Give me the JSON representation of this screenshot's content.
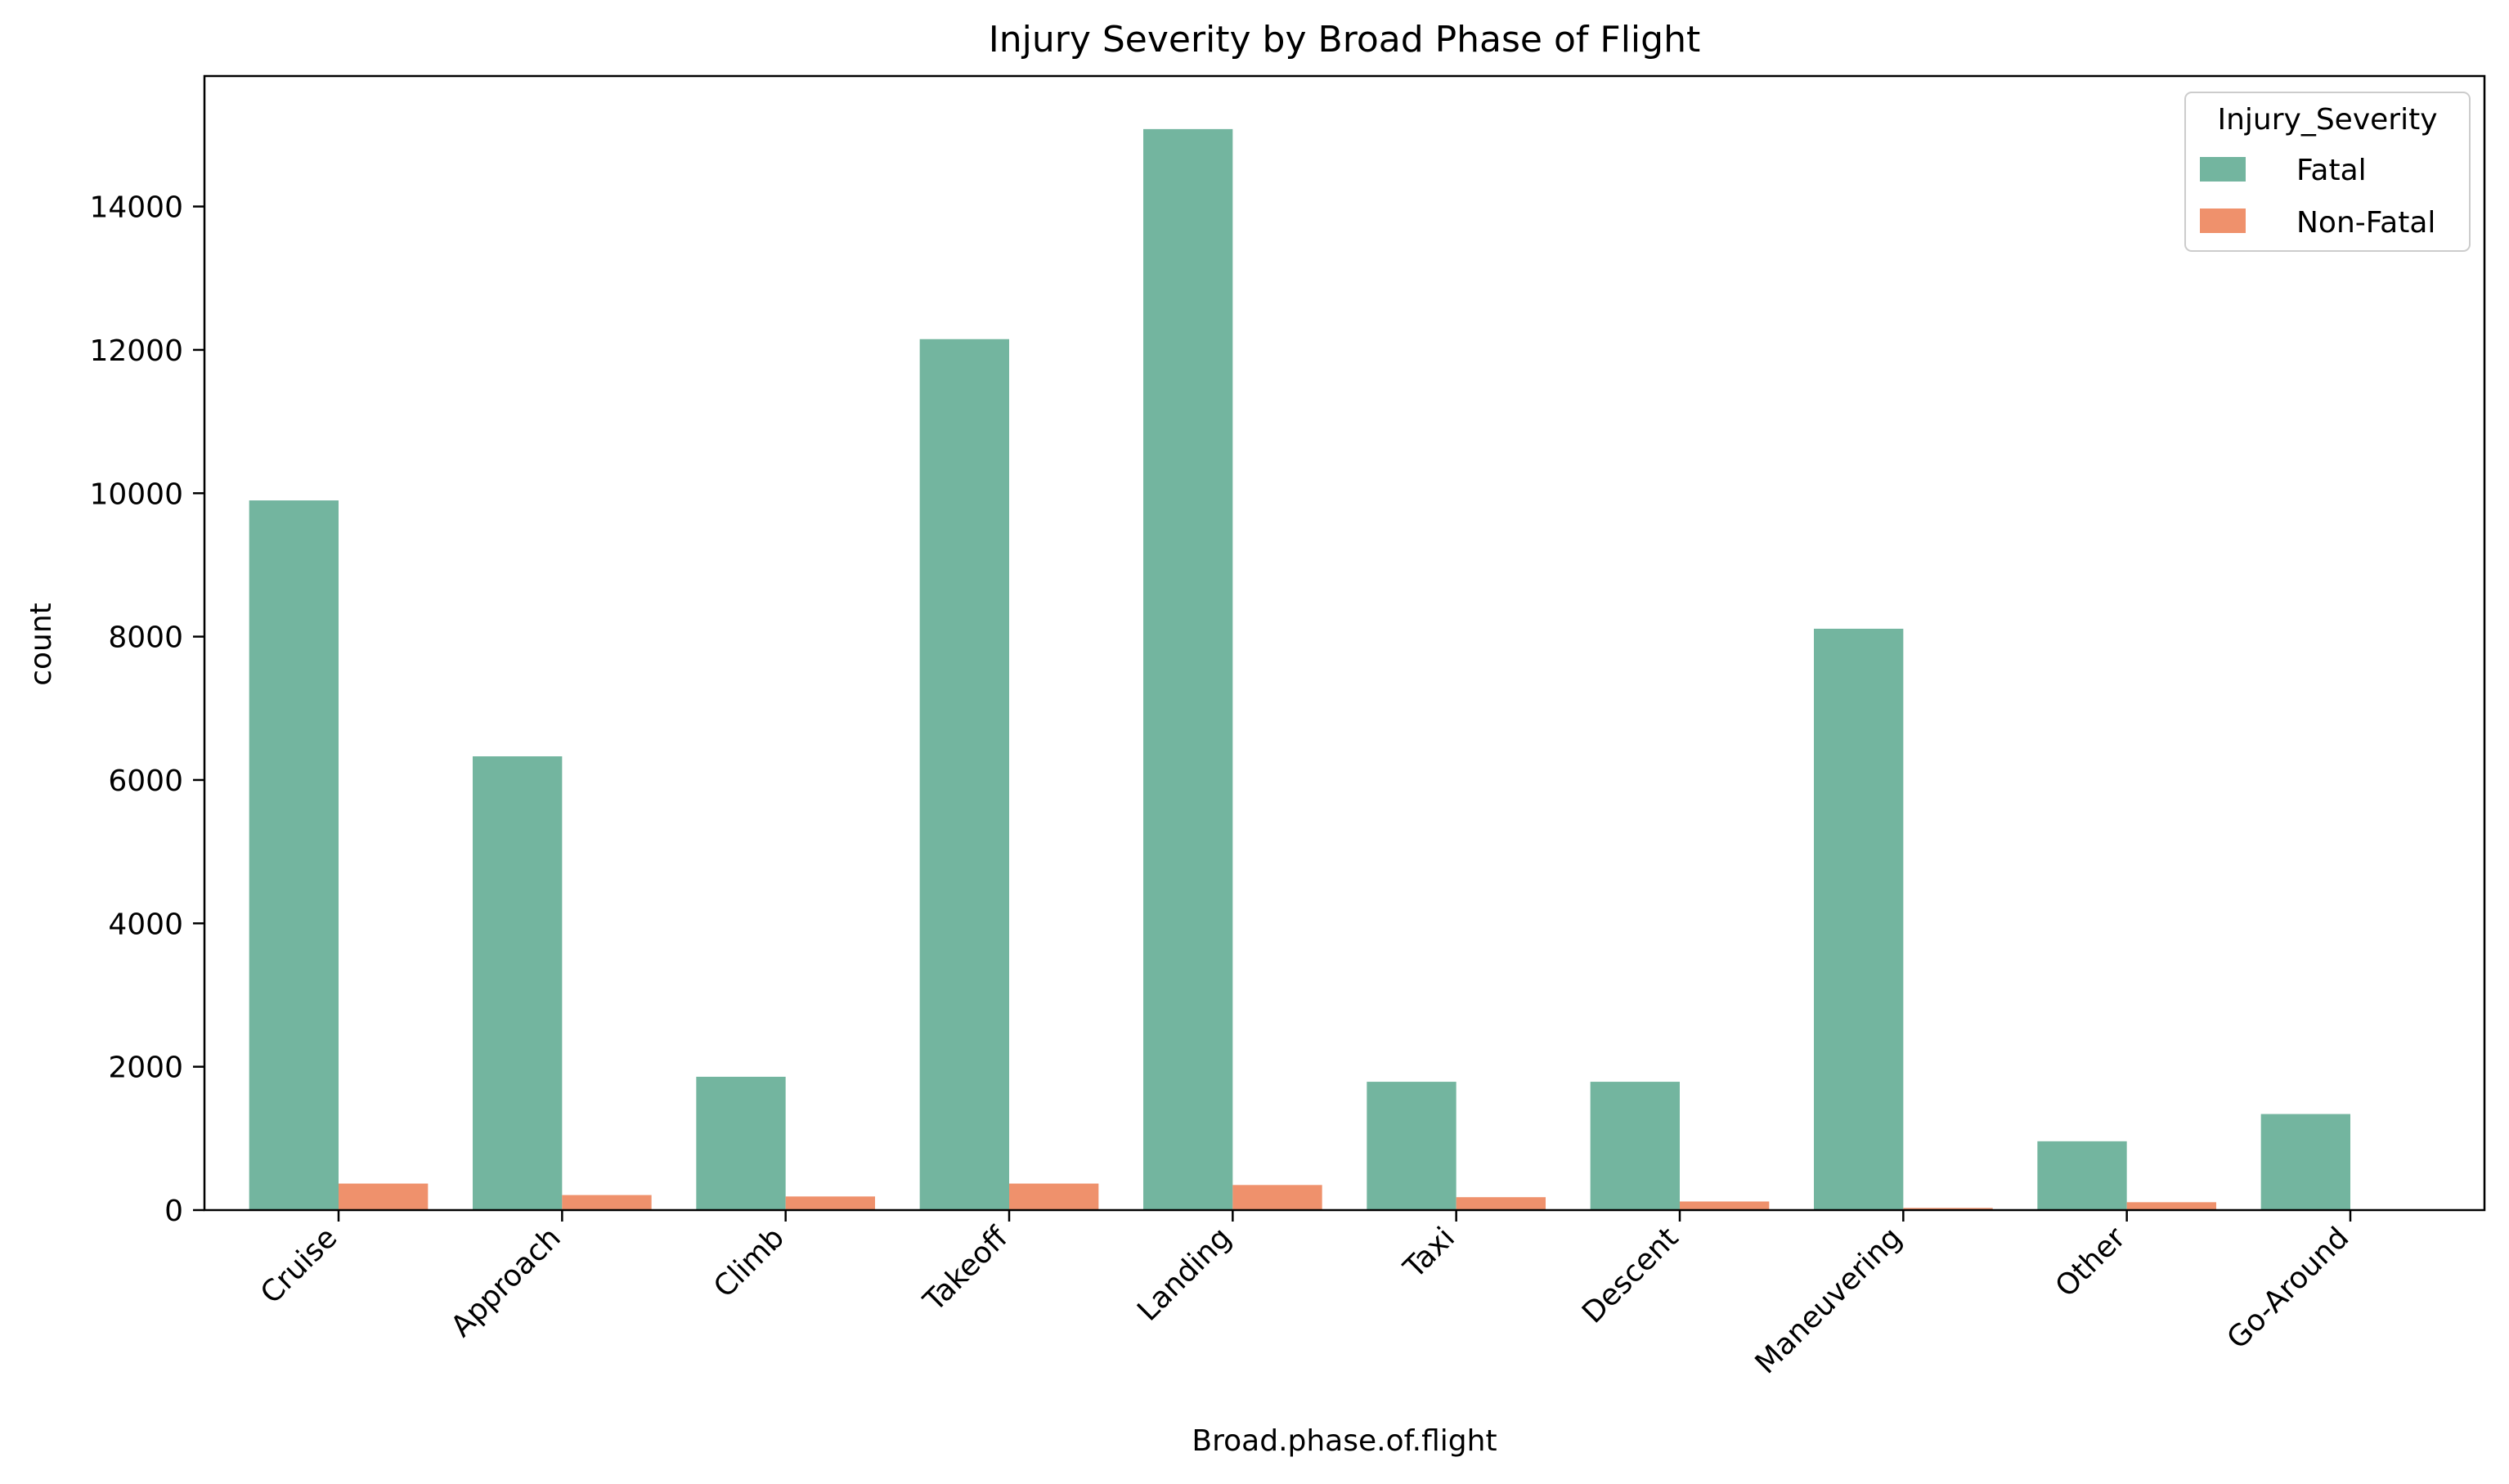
{
  "chart_data": {
    "type": "bar",
    "title": "Injury Severity by Broad Phase of Flight",
    "xlabel": "Broad.phase.of.flight",
    "ylabel": "count",
    "categories": [
      "Cruise",
      "Approach",
      "Climb",
      "Takeoff",
      "Landing",
      "Taxi",
      "Descent",
      "Maneuvering",
      "Other",
      "Go-Around"
    ],
    "series": [
      {
        "name": "Fatal",
        "color": "#73b59f",
        "values": [
          9900,
          6330,
          1860,
          12150,
          15080,
          1790,
          1790,
          8110,
          960,
          1340
        ]
      },
      {
        "name": "Non-Fatal",
        "color": "#ef916c",
        "values": [
          370,
          210,
          190,
          370,
          350,
          180,
          120,
          30,
          110,
          0
        ]
      }
    ],
    "ylim": [
      0,
      15820
    ],
    "yticks": [
      0,
      2000,
      4000,
      6000,
      8000,
      10000,
      12000,
      14000
    ],
    "grid": false,
    "legend": {
      "title": "Injury_Severity",
      "placement": "top-right"
    }
  }
}
